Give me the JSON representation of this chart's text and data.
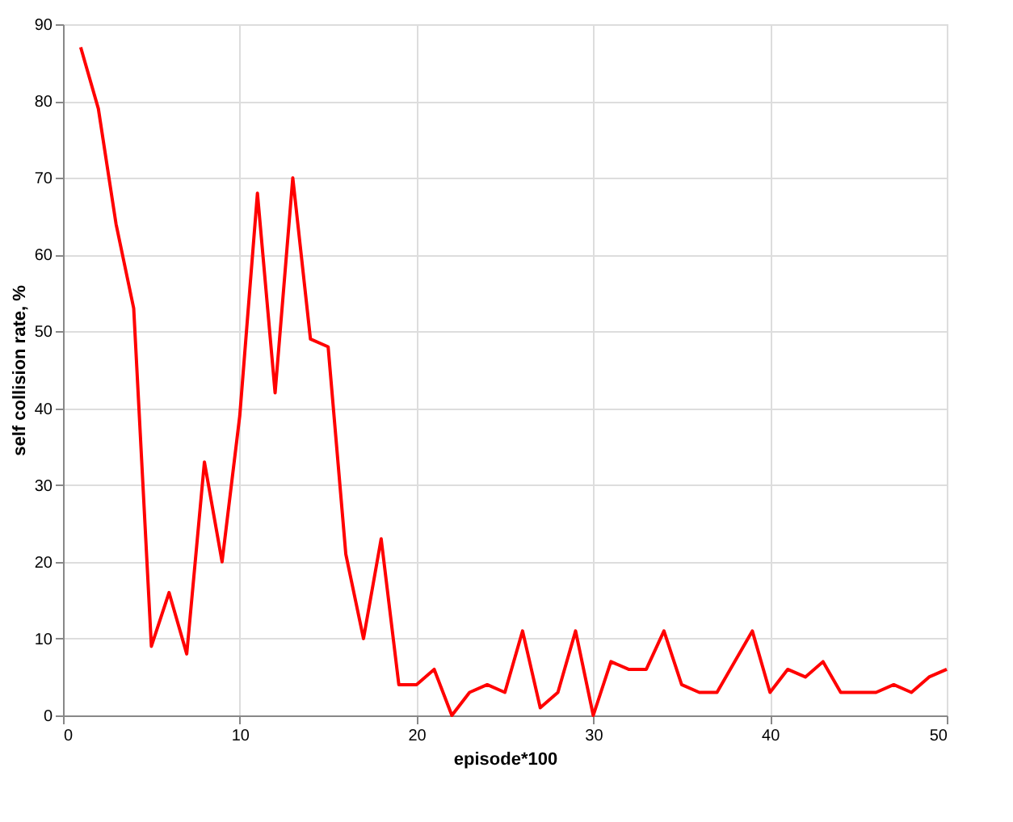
{
  "chart_data": {
    "type": "line",
    "xlabel": "episode*100",
    "ylabel": "self collision rate, %",
    "x": [
      1,
      2,
      3,
      4,
      5,
      6,
      7,
      8,
      9,
      10,
      11,
      12,
      13,
      14,
      15,
      16,
      17,
      18,
      19,
      20,
      21,
      22,
      23,
      24,
      25,
      26,
      27,
      28,
      29,
      30,
      31,
      32,
      33,
      34,
      35,
      36,
      37,
      38,
      39,
      40,
      41,
      42,
      43,
      44,
      45,
      46,
      47,
      48,
      49,
      50
    ],
    "series": [
      {
        "color": "#ff0000",
        "values": [
          87,
          79,
          64,
          53,
          9,
          16,
          8,
          33,
          20,
          39,
          68,
          42,
          70,
          49,
          48,
          21,
          10,
          23,
          4,
          4,
          6,
          0,
          3,
          4,
          3,
          11,
          1,
          3,
          11,
          0,
          7,
          6,
          6,
          11,
          4,
          3,
          3,
          7,
          11,
          3,
          6,
          5,
          7,
          3,
          3,
          3,
          4,
          3,
          5,
          6
        ]
      }
    ],
    "xlim": [
      0,
      50
    ],
    "ylim": [
      0,
      90
    ],
    "xticks": [
      0,
      10,
      20,
      30,
      40,
      50
    ],
    "yticks": [
      0,
      10,
      20,
      30,
      40,
      50,
      60,
      70,
      80,
      90
    ],
    "grid": true,
    "marker": "none",
    "line_style": "solid",
    "legend": false
  }
}
